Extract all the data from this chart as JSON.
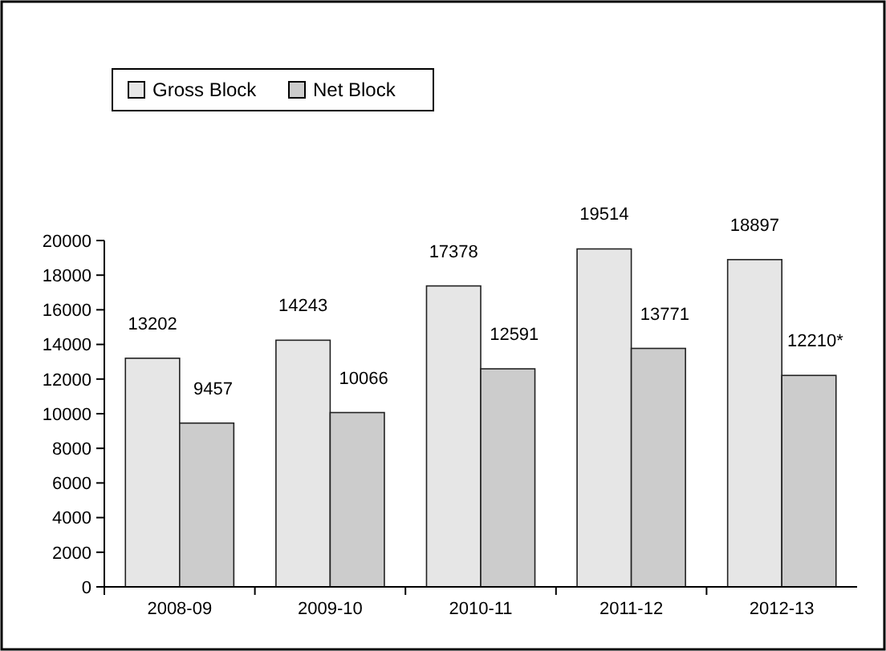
{
  "chart_data": {
    "type": "bar",
    "categories": [
      "2008-09",
      "2009-10",
      "2010-11",
      "2011-12",
      "2012-13"
    ],
    "series": [
      {
        "name": "Gross Block",
        "color": "#e6e6e6",
        "values": [
          13202,
          14243,
          17378,
          19514,
          18897
        ],
        "value_labels": [
          "13202",
          "14243",
          "17378",
          "19514",
          "18897"
        ]
      },
      {
        "name": "Net Block",
        "color": "#cccccc",
        "values": [
          9457,
          10066,
          12591,
          13771,
          12210
        ],
        "value_labels": [
          "9457",
          "10066",
          "12591",
          "13771",
          "12210*"
        ]
      }
    ],
    "ylim": [
      0,
      20000
    ],
    "yticks": [
      0,
      2000,
      4000,
      6000,
      8000,
      10000,
      12000,
      14000,
      16000,
      18000,
      20000
    ],
    "grid": false,
    "legend": "top left"
  }
}
